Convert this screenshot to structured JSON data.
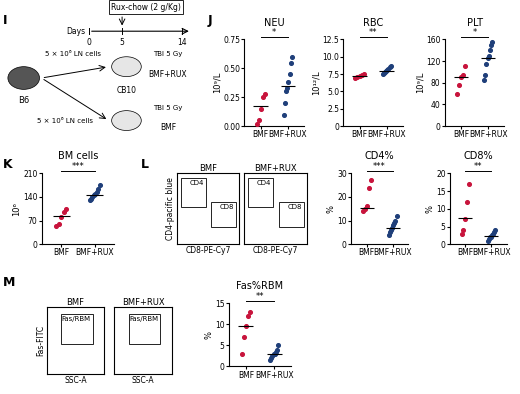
{
  "panel_labels": [
    "I",
    "J",
    "K",
    "L",
    "M"
  ],
  "schematic": {
    "treatment": "Rux-chow (2 g/Kg)",
    "axis_label": "Days",
    "days": [
      0,
      5,
      14
    ],
    "treatment_start_day": 5,
    "donor": "B6",
    "recipient_strain": "CB10",
    "cell_dose": "5 × 10⁶ LN cells",
    "irradiation": "TBI 5 Gy",
    "groups": [
      "BMF+RUX",
      "BMF"
    ]
  },
  "flow_plots": [
    {
      "x_label": "CD8-PE-Cy7",
      "y_label": "CD4-pacific blue",
      "plots": [
        "BMF",
        "BMF+RUX"
      ],
      "gates": [
        "CD4",
        "CD8"
      ]
    },
    {
      "x_label": "SSC-A",
      "y_label": "Fas-FITC",
      "plots": [
        "BMF",
        "BMF+RUX"
      ],
      "gates": [
        "Fas/RBM"
      ]
    }
  ],
  "chart_data": [
    {
      "type": "dot",
      "title": "NEU",
      "y_label": "10⁹/L",
      "categories": [
        "BMF",
        "BMF+RUX"
      ],
      "colors": [
        "#c8143c",
        "#1f3f7a"
      ],
      "values": [
        [
          0.02,
          0.05,
          0.15,
          0.25,
          0.28
        ],
        [
          0.1,
          0.2,
          0.3,
          0.33,
          0.38,
          0.45,
          0.55,
          0.6
        ]
      ],
      "medians": [
        0.17,
        0.35
      ],
      "significance": "*",
      "ylim": [
        0,
        0.75
      ],
      "yticks": [
        {
          "value": 0,
          "label": "0.00"
        },
        0.25,
        {
          "value": 0.5,
          "label": "0.50"
        },
        0.75
      ]
    },
    {
      "type": "dot",
      "title": "RBC",
      "y_label": "10¹²/L",
      "categories": [
        "BMF",
        "BMF+RUX"
      ],
      "colors": [
        "#c8143c",
        "#1f3f7a"
      ],
      "values": [
        [
          7.0,
          7.1,
          7.2,
          7.3,
          7.5
        ],
        [
          7.5,
          7.7,
          7.8,
          8.0,
          8.1,
          8.3,
          8.5,
          8.7
        ]
      ],
      "medians": [
        7.2,
        7.9
      ],
      "significance": "**",
      "ylim": [
        0,
        12.5
      ],
      "yticks": [
        0,
        2.5,
        {
          "value": 5,
          "label": "5.0"
        },
        7.5,
        {
          "value": 10,
          "label": "10.0"
        },
        12.5
      ]
    },
    {
      "type": "dot",
      "title": "PLT",
      "y_label": "10⁹/L",
      "categories": [
        "BMF",
        "BMF+RUX"
      ],
      "colors": [
        "#c8143c",
        "#1f3f7a"
      ],
      "values": [
        [
          60,
          75,
          90,
          95,
          110
        ],
        [
          85,
          95,
          115,
          125,
          130,
          140,
          150,
          155
        ]
      ],
      "medians": [
        90,
        125
      ],
      "significance": "*",
      "ylim": [
        0,
        160
      ],
      "yticks": [
        0,
        40,
        80,
        120,
        160
      ]
    },
    {
      "type": "dot",
      "title": "BM cells",
      "y_label": "10⁶",
      "categories": [
        "BMF",
        "BMF+RUX"
      ],
      "colors": [
        "#c8143c",
        "#1f3f7a"
      ],
      "values": [
        [
          55,
          60,
          80,
          95,
          105
        ],
        [
          130,
          135,
          140,
          145,
          150,
          155,
          165,
          175
        ]
      ],
      "medians": [
        85,
        145
      ],
      "significance": "***",
      "ylim": [
        0,
        210
      ],
      "yticks": [
        0,
        70,
        140,
        210
      ]
    },
    {
      "type": "dot",
      "title": "CD4%",
      "y_label": "%",
      "categories": [
        "BMF",
        "BMF+RUX"
      ],
      "colors": [
        "#c8143c",
        "#1f3f7a"
      ],
      "values": [
        [
          14,
          15,
          16,
          24,
          27
        ],
        [
          4,
          5,
          6,
          7,
          8,
          9,
          10,
          12
        ]
      ],
      "medians": [
        15.5,
        7
      ],
      "significance": "***",
      "ylim": [
        0,
        30
      ],
      "yticks": [
        0,
        10,
        20,
        30
      ]
    },
    {
      "type": "dot",
      "title": "CD8%",
      "y_label": "%",
      "categories": [
        "BMF",
        "BMF+RUX"
      ],
      "colors": [
        "#c8143c",
        "#1f3f7a"
      ],
      "values": [
        [
          3,
          4,
          7,
          12,
          17
        ],
        [
          1,
          1.5,
          2,
          2,
          2.5,
          3,
          3.5,
          4
        ]
      ],
      "medians": [
        7.5,
        2.3
      ],
      "significance": "**",
      "ylim": [
        0,
        20
      ],
      "yticks": [
        0,
        5,
        10,
        15,
        20
      ]
    },
    {
      "type": "dot",
      "title": "Fas%RBM",
      "y_label": "%",
      "categories": [
        "BMF",
        "BMF+RUX"
      ],
      "colors": [
        "#c8143c",
        "#1f3f7a"
      ],
      "values": [
        [
          3,
          7,
          9.5,
          12,
          13
        ],
        [
          1.5,
          2,
          2.5,
          3,
          3,
          3.5,
          4,
          5
        ]
      ],
      "medians": [
        9.5,
        3
      ],
      "significance": "**",
      "ylim": [
        0,
        15
      ],
      "yticks": [
        0,
        5,
        10,
        15
      ]
    }
  ]
}
